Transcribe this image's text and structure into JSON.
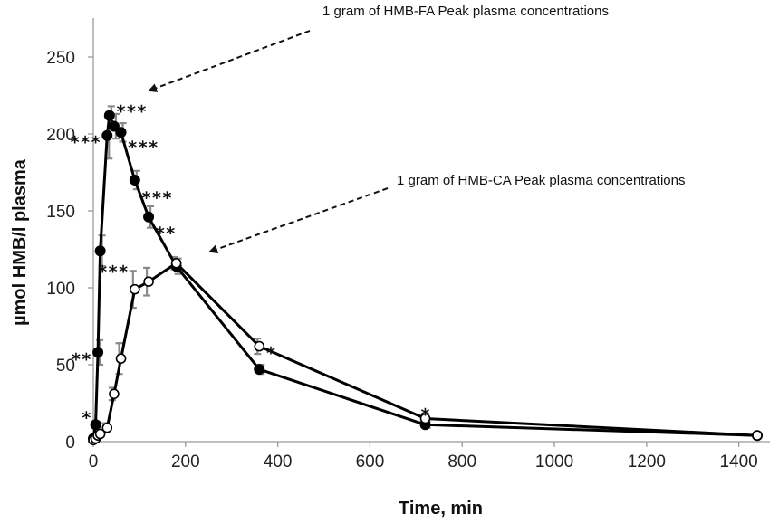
{
  "chart_data": {
    "type": "line",
    "title": "",
    "xlabel": "Time, min",
    "ylabel": "µmol  HMB/l plasma",
    "xlim": [
      0,
      1450
    ],
    "ylim": [
      0,
      270
    ],
    "xticks": [
      0,
      200,
      400,
      600,
      800,
      1000,
      1200,
      1400
    ],
    "xtick_labels": [
      "0",
      "200",
      "400",
      "600",
      "800",
      "1000",
      "1200",
      "1400"
    ],
    "yticks": [
      0,
      50,
      100,
      150,
      200,
      250
    ],
    "ytick_labels": [
      "0",
      "50",
      "100",
      "150",
      "200",
      "250"
    ],
    "grid": false,
    "series": [
      {
        "name": "HMB-FA",
        "marker": "filled-circle",
        "x": [
          0,
          5,
          10,
          15,
          30,
          35,
          45,
          60,
          90,
          120,
          180,
          360,
          720,
          1440
        ],
        "y": [
          2,
          11,
          58,
          124,
          199,
          212,
          205,
          201,
          170,
          146,
          114,
          47,
          11,
          4
        ],
        "err": [
          0,
          2,
          8,
          10,
          15,
          6,
          8,
          6,
          6,
          7,
          5,
          3,
          2,
          0
        ]
      },
      {
        "name": "HMB-CA",
        "marker": "open-circle",
        "x": [
          0,
          5,
          10,
          15,
          30,
          45,
          60,
          90,
          120,
          180,
          360,
          720,
          1440
        ],
        "y": [
          1,
          2,
          4,
          5,
          9,
          31,
          54,
          99,
          104,
          116,
          62,
          15,
          4
        ],
        "err": [
          0,
          0,
          1,
          1,
          3,
          4,
          10,
          12,
          9,
          4,
          5,
          2,
          0
        ]
      }
    ],
    "significance": [
      {
        "text": "*",
        "x": 10,
        "y": 20,
        "side": "left"
      },
      {
        "text": "**",
        "x": 10,
        "y": 58,
        "side": "left"
      },
      {
        "text": "***",
        "x": 30,
        "y": 199,
        "side": "left"
      },
      {
        "text": "***",
        "x": 35,
        "y": 219,
        "side": "right"
      },
      {
        "text": "***",
        "x": 60,
        "y": 196,
        "side": "right"
      },
      {
        "text": "***",
        "x": 90,
        "y": 163,
        "side": "right"
      },
      {
        "text": "**",
        "x": 120,
        "y": 140,
        "side": "right"
      },
      {
        "text": "***",
        "x": 90,
        "y": 115,
        "side": "left"
      },
      {
        "text": "*",
        "x": 360,
        "y": 62,
        "side": "right"
      },
      {
        "text": "*",
        "x": 720,
        "y": 22,
        "side": "center"
      }
    ],
    "annotations": [
      {
        "text": "1 gram of HMB-FA Peak plasma concentrations",
        "target_x": 35,
        "target_y": 212
      },
      {
        "text": "1 gram of HMB-CA Peak plasma concentrations",
        "target_x": 180,
        "target_y": 116
      }
    ]
  }
}
